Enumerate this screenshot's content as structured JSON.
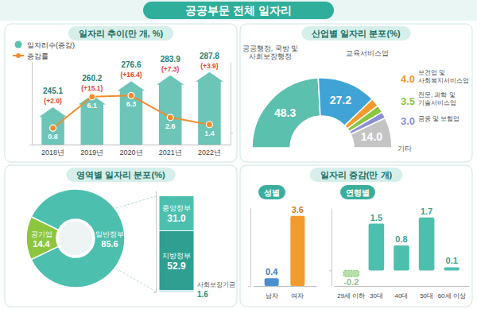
{
  "header": {
    "title": "공공부문 전체 일자리"
  },
  "chart_data": [
    {
      "type": "bar",
      "title": "일자리 추이(만 개, %)",
      "categories": [
        "2018년",
        "2019년",
        "2020년",
        "2021년",
        "2022년"
      ],
      "series": [
        {
          "name": "일자리수(증감)",
          "type": "bar",
          "color": "#5cbfae",
          "values": [
            245.1,
            260.2,
            276.6,
            283.9,
            287.8
          ],
          "changes": [
            2.0,
            15.1,
            16.4,
            7.3,
            3.9
          ],
          "change_labels": [
            "(+2.0)",
            "(+15.1)",
            "(+16.4)",
            "(+7.3)",
            "(+3.9)"
          ]
        },
        {
          "name": "증감률",
          "type": "line",
          "axis": "y2",
          "color": "#f08c2e",
          "marker": "circle",
          "values": [
            0.8,
            6.1,
            6.3,
            2.6,
            1.4
          ]
        }
      ],
      "ylim": [
        200,
        300
      ],
      "yticks": [
        200
      ],
      "y2lim": [
        -2,
        12
      ],
      "y2ticks": [
        0
      ],
      "data_labels": true,
      "tick_labels": "x",
      "legend": "top-left"
    },
    {
      "type": "pie",
      "title": "산업별 일자리 분포(%)",
      "categories": [
        "공공행정, 국방 및 사회보장행정",
        "교육서비스업",
        "보건업 및 사회복지서비스업",
        "전문, 과학 및 기술서비스업",
        "금융 및 보험업",
        "기타"
      ],
      "values": [
        48.3,
        27.2,
        4.0,
        3.5,
        3.0,
        14.0
      ],
      "value_labels": [
        "48.3",
        "27.2",
        "4.0",
        "3.5",
        "3.0",
        "14.0"
      ],
      "colors": [
        "#5cc0ae",
        "#3fa3d6",
        "#f39a2c",
        "#8cc63f",
        "#8b8fd6",
        "#c4c4c4"
      ],
      "data_labels": true
    },
    {
      "type": "pie",
      "title": "영역별 일자리 분포(%)",
      "categories": [
        "공기업",
        "일반정부"
      ],
      "values": [
        14.4,
        85.6
      ],
      "colors": [
        "#8cc63f",
        "#4dbfae"
      ],
      "data_labels": true
    },
    {
      "type": "bar",
      "stacked": true,
      "categories": [
        null
      ],
      "series": [
        {
          "name": "중앙정부",
          "color": "#4dbfae",
          "values": [
            31.0
          ],
          "value_labels": [
            "31.0"
          ]
        },
        {
          "name": "지방정부",
          "color": "#2e9f91",
          "values": [
            52.9
          ]
        },
        {
          "name": "사회보장기금",
          "color": "#a8ddd4",
          "values": [
            1.6
          ]
        }
      ],
      "ylim": [
        0,
        90
      ],
      "yticks": [
        0
      ],
      "data_labels": true,
      "tick_labels": false
    },
    {
      "type": "bar",
      "title": "일자리 증감(만 개)",
      "subtitle": "성별",
      "categories": [
        "남자",
        "여자"
      ],
      "values": [
        0.4,
        3.6
      ],
      "colors": [
        "#4a8fd0",
        "#f39a2c"
      ],
      "ylim": [
        0,
        4
      ],
      "yticks": [
        0
      ],
      "data_labels": true,
      "tick_labels": "x"
    },
    {
      "type": "bar",
      "subtitle": "연령별",
      "categories": [
        "29세 이하",
        "30대",
        "40대",
        "50대",
        "60세 이상"
      ],
      "values": [
        -0.2,
        1.5,
        0.8,
        1.7,
        0.1
      ],
      "colors": [
        "#b5e0a8",
        "#4dbfae",
        "#4dbfae",
        "#4dbfae",
        "#4dbfae"
      ],
      "ylim": [
        -0.5,
        2
      ],
      "yticks": [
        0
      ],
      "data_labels": true,
      "tick_labels": "x"
    }
  ]
}
